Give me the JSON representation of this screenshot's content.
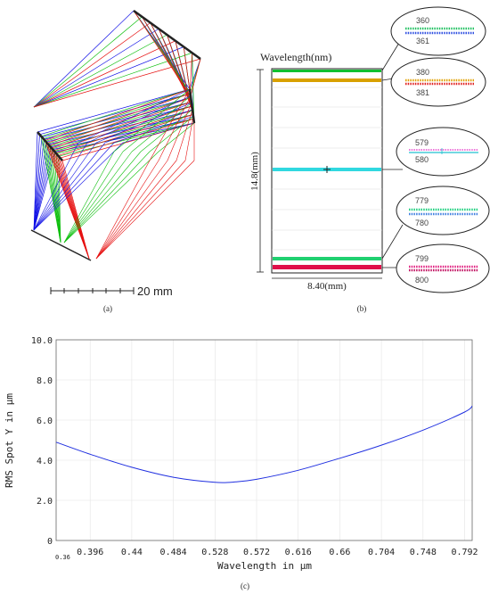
{
  "panels": {
    "a": {
      "caption": "(a)",
      "scale_bar_label": "20 mm",
      "colors": {
        "blue": "#1010e6",
        "green": "#10c010",
        "red": "#e61010"
      }
    },
    "b": {
      "caption": "(b)",
      "title": "Wavelength(nm)",
      "height_label": "14.8(mm)",
      "width_label": "8.40(mm)",
      "bands": [
        {
          "nm": 360,
          "color": "#10c030"
        },
        {
          "nm": 380,
          "color": "#d8a000"
        },
        {
          "nm": 580,
          "color": "#30d8e0"
        },
        {
          "nm": 780,
          "color": "#20d070"
        },
        {
          "nm": 800,
          "color": "#e0104a"
        }
      ],
      "callouts": [
        {
          "top": "360",
          "bottom": "361",
          "c1": "#20c060",
          "c2": "#3050e0"
        },
        {
          "top": "380",
          "bottom": "381",
          "c1": "#e0a000",
          "c2": "#e02020"
        },
        {
          "top": "579",
          "bottom": "580",
          "c1": "#e020c0",
          "c2": "#20c0d0"
        },
        {
          "top": "779",
          "bottom": "780",
          "c1": "#20d080",
          "c2": "#4080e0"
        },
        {
          "top": "799",
          "bottom": "800",
          "c1": "#e02080",
          "c2": "#c01060"
        }
      ]
    },
    "c": {
      "caption": "(c)",
      "chart_data": {
        "type": "line",
        "xlabel": "Wavelength in µm",
        "ylabel": "RMS Spot Y in µm",
        "xlim": [
          0.36,
          0.8
        ],
        "ylim": [
          0,
          10
        ],
        "x_ticks": [
          "0.36",
          "0.396",
          "0.44",
          "0.484",
          "0.528",
          "0.572",
          "0.616",
          "0.66",
          "0.704",
          "0.748",
          "0.792"
        ],
        "y_ticks": [
          "0",
          "2.0",
          "4.0",
          "6.0",
          "8.0",
          "10.0"
        ],
        "grid": true,
        "series": [
          {
            "color": "#2030e0",
            "x": [
              0.36,
              0.396,
              0.44,
              0.484,
              0.528,
              0.55,
              0.572,
              0.616,
              0.66,
              0.704,
              0.748,
              0.792,
              0.8
            ],
            "y": [
              4.9,
              4.3,
              3.65,
              3.15,
              2.9,
              2.92,
              3.05,
              3.5,
              4.1,
              4.75,
              5.5,
              6.4,
              6.7
            ]
          }
        ]
      }
    }
  }
}
